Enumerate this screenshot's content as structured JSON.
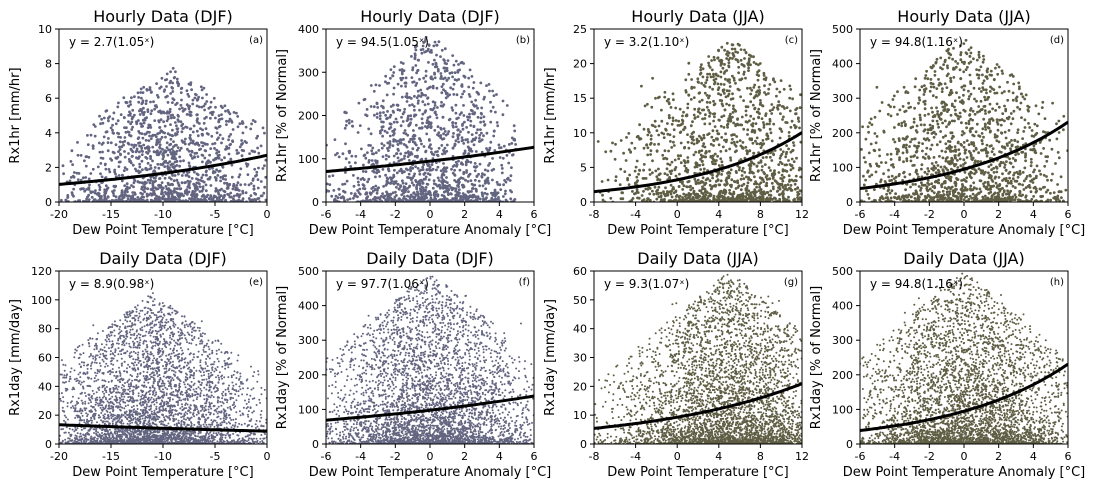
{
  "figure": {
    "scatter_color_djf": "#636580",
    "scatter_color_jja": "#5f5e44",
    "fit_color": "#000000"
  },
  "chart_data": [
    {
      "type": "scatter",
      "panel_label": "(a)",
      "title": "Hourly Data (DJF)",
      "xlabel": "Dew Point Temperature [°C]",
      "ylabel": "Rx1hr [mm/hr]",
      "xlim": [
        -20,
        0
      ],
      "ylim": [
        0,
        10
      ],
      "xticks": [
        -20,
        -15,
        -10,
        -5,
        0
      ],
      "xtick_labels": [
        "-20",
        "-15",
        "-10",
        "-5",
        "0"
      ],
      "yticks": [
        0,
        2,
        4,
        6,
        8,
        10
      ],
      "ytick_labels": [
        "0",
        "2",
        "4",
        "6",
        "8",
        "10"
      ],
      "season": "DJF",
      "fit": {
        "a": 2.7,
        "b": 1.05,
        "equation": "y = 2.7(1.05ˣ)"
      },
      "scatter": {
        "x_range": [
          -20,
          0
        ],
        "y_range": [
          0,
          7.8
        ],
        "center_x": -9,
        "density": "dense"
      }
    },
    {
      "type": "scatter",
      "panel_label": "(b)",
      "title": "Hourly Data (DJF)",
      "xlabel": "Dew Point Temperature Anomaly [°C]",
      "ylabel": "Rx1hr [% of Normal]",
      "xlim": [
        -6,
        6
      ],
      "ylim": [
        0,
        400
      ],
      "xticks": [
        -6,
        -4,
        -2,
        0,
        2,
        4,
        6
      ],
      "xtick_labels": [
        "-6",
        "-4",
        "-2",
        "0",
        "2",
        "4",
        "6"
      ],
      "yticks": [
        0,
        100,
        200,
        300,
        400
      ],
      "ytick_labels": [
        "0",
        "100",
        "200",
        "300",
        "400"
      ],
      "season": "DJF",
      "fit": {
        "a": 94.5,
        "b": 1.05,
        "equation": "y = 94.5(1.05ˣ)"
      },
      "scatter": {
        "x_range": [
          -6,
          5
        ],
        "y_range": [
          0,
          390
        ],
        "center_x": 0,
        "density": "dense"
      }
    },
    {
      "type": "scatter",
      "panel_label": "(c)",
      "title": "Hourly Data (JJA)",
      "xlabel": "Dew Point Temperature [°C]",
      "ylabel": "Rx1hr [mm/hr]",
      "xlim": [
        -8,
        12
      ],
      "ylim": [
        0,
        25
      ],
      "xticks": [
        -8,
        -4,
        0,
        4,
        8,
        12
      ],
      "xtick_labels": [
        "-8",
        "-4",
        "0",
        "4",
        "8",
        "12"
      ],
      "yticks": [
        0,
        5,
        10,
        15,
        20,
        25
      ],
      "ytick_labels": [
        "0",
        "5",
        "10",
        "15",
        "20",
        "25"
      ],
      "season": "JJA",
      "fit": {
        "a": 3.2,
        "b": 1.1,
        "equation": "y = 3.2(1.10ˣ)"
      },
      "scatter": {
        "x_range": [
          -8,
          12
        ],
        "y_range": [
          0,
          24
        ],
        "center_x": 5,
        "density": "dense"
      }
    },
    {
      "type": "scatter",
      "panel_label": "(d)",
      "title": "Hourly Data (JJA)",
      "xlabel": "Dew Point Temperature Anomaly [°C]",
      "ylabel": "Rx1hr [% of Normal]",
      "xlim": [
        -6,
        6
      ],
      "ylim": [
        0,
        500
      ],
      "xticks": [
        -6,
        -4,
        -2,
        0,
        2,
        4,
        6
      ],
      "xtick_labels": [
        "-6",
        "-4",
        "-2",
        "0",
        "2",
        "4",
        "6"
      ],
      "yticks": [
        0,
        100,
        200,
        300,
        400,
        500
      ],
      "ytick_labels": [
        "0",
        "100",
        "200",
        "300",
        "400",
        "500"
      ],
      "season": "JJA",
      "fit": {
        "a": 94.8,
        "b": 1.16,
        "equation": "y = 94.8(1.16ˣ)"
      },
      "scatter": {
        "x_range": [
          -6,
          6
        ],
        "y_range": [
          0,
          480
        ],
        "center_x": 0,
        "density": "dense"
      }
    },
    {
      "type": "scatter",
      "panel_label": "(e)",
      "title": "Daily Data (DJF)",
      "xlabel": "Dew Point Temperature [°C]",
      "ylabel": "Rx1day [mm/day]",
      "xlim": [
        -20,
        0
      ],
      "ylim": [
        0,
        120
      ],
      "xticks": [
        -20,
        -15,
        -10,
        -5,
        0
      ],
      "xtick_labels": [
        "-20",
        "-15",
        "-10",
        "-5",
        "0"
      ],
      "yticks": [
        0,
        20,
        40,
        60,
        80,
        100,
        120
      ],
      "ytick_labels": [
        "0",
        "20",
        "40",
        "60",
        "80",
        "100",
        "120"
      ],
      "season": "DJF",
      "fit": {
        "a": 8.9,
        "b": 0.98,
        "equation": "y = 8.9(0.98ˣ)"
      },
      "scatter": {
        "x_range": [
          -20,
          0
        ],
        "y_range": [
          0,
          105
        ],
        "center_x": -11,
        "density": "very dense"
      }
    },
    {
      "type": "scatter",
      "panel_label": "(f)",
      "title": "Daily Data (DJF)",
      "xlabel": "Dew Point Temperature Anomaly [°C]",
      "ylabel": "Rx1day [% of Normal]",
      "xlim": [
        -6,
        6
      ],
      "ylim": [
        0,
        500
      ],
      "xticks": [
        -6,
        -4,
        -2,
        0,
        2,
        4,
        6
      ],
      "xtick_labels": [
        "-6",
        "-4",
        "-2",
        "0",
        "2",
        "4",
        "6"
      ],
      "yticks": [
        0,
        100,
        200,
        300,
        400,
        500
      ],
      "ytick_labels": [
        "0",
        "100",
        "200",
        "300",
        "400",
        "500"
      ],
      "season": "DJF",
      "fit": {
        "a": 97.7,
        "b": 1.06,
        "equation": "y = 97.7(1.06ˣ)"
      },
      "scatter": {
        "x_range": [
          -6,
          6
        ],
        "y_range": [
          0,
          500
        ],
        "center_x": 0,
        "density": "very dense"
      }
    },
    {
      "type": "scatter",
      "panel_label": "(g)",
      "title": "Daily Data (JJA)",
      "xlabel": "Dew Point Temperature [°C]",
      "ylabel": "Rx1day [mm/day]",
      "xlim": [
        -8,
        12
      ],
      "ylim": [
        0,
        60
      ],
      "xticks": [
        -8,
        -4,
        0,
        4,
        8,
        12
      ],
      "xtick_labels": [
        "-8",
        "-4",
        "0",
        "4",
        "8",
        "12"
      ],
      "yticks": [
        0,
        10,
        20,
        30,
        40,
        50,
        60
      ],
      "ytick_labels": [
        "0",
        "10",
        "20",
        "30",
        "40",
        "50",
        "60"
      ],
      "season": "JJA",
      "fit": {
        "a": 9.3,
        "b": 1.07,
        "equation": "y = 9.3(1.07ˣ)"
      },
      "scatter": {
        "x_range": [
          -8,
          12
        ],
        "y_range": [
          0,
          60
        ],
        "center_x": 5,
        "density": "very dense"
      }
    },
    {
      "type": "scatter",
      "panel_label": "(h)",
      "title": "Daily Data (JJA)",
      "xlabel": "Dew Point Temperature Anomaly [°C]",
      "ylabel": "Rx1day [% of Normal]",
      "xlim": [
        -6,
        6
      ],
      "ylim": [
        0,
        500
      ],
      "xticks": [
        -6,
        -4,
        -2,
        0,
        2,
        4,
        6
      ],
      "xtick_labels": [
        "-6",
        "-4",
        "-2",
        "0",
        "2",
        "4",
        "6"
      ],
      "yticks": [
        0,
        100,
        200,
        300,
        400,
        500
      ],
      "ytick_labels": [
        "0",
        "100",
        "200",
        "300",
        "400",
        "500"
      ],
      "season": "JJA",
      "fit": {
        "a": 94.8,
        "b": 1.16,
        "equation": "y = 94.8(1.16ˣ)"
      },
      "scatter": {
        "x_range": [
          -6,
          6
        ],
        "y_range": [
          0,
          500
        ],
        "center_x": 0,
        "density": "very dense"
      }
    }
  ]
}
